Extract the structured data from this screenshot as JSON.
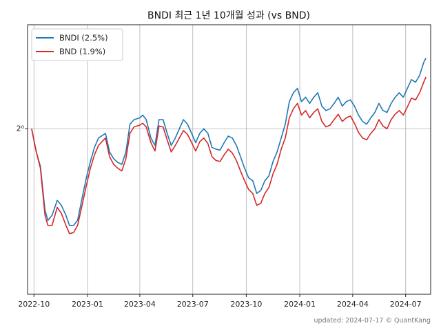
{
  "chart_data": {
    "type": "line",
    "title": "BNDI 최근 1년 10개월 성과 (vs BND)",
    "xlabel": "",
    "ylabel": "",
    "y_scale": "log2",
    "y_tick_label": "2⁰",
    "y_tick_value": 1.0,
    "ylim": [
      0.835,
      1.12
    ],
    "xlim": [
      "2022-09-20",
      "2024-08-13"
    ],
    "x_ticks": [
      {
        "date": "2022-10-01",
        "label": "2022-10"
      },
      {
        "date": "2023-01-01",
        "label": "2023-01"
      },
      {
        "date": "2023-04-01",
        "label": "2023-04"
      },
      {
        "date": "2023-07-01",
        "label": "2023-07"
      },
      {
        "date": "2023-10-01",
        "label": "2023-10"
      },
      {
        "date": "2024-01-01",
        "label": "2024-01"
      },
      {
        "date": "2024-04-01",
        "label": "2024-04"
      },
      {
        "date": "2024-07-01",
        "label": "2024-07"
      }
    ],
    "grid": true,
    "legend_position": "top-left",
    "series": [
      {
        "name": "BNDI (2.5%)",
        "color": "#1f77b4",
        "points": [
          [
            "2022-09-27",
            1.0
          ],
          [
            "2022-10-05",
            0.975
          ],
          [
            "2022-10-12",
            0.96
          ],
          [
            "2022-10-20",
            0.915
          ],
          [
            "2022-10-25",
            0.905
          ],
          [
            "2022-11-01",
            0.91
          ],
          [
            "2022-11-10",
            0.925
          ],
          [
            "2022-11-17",
            0.92
          ],
          [
            "2022-11-25",
            0.91
          ],
          [
            "2022-12-01",
            0.9
          ],
          [
            "2022-12-08",
            0.9
          ],
          [
            "2022-12-15",
            0.905
          ],
          [
            "2022-12-22",
            0.925
          ],
          [
            "2022-12-30",
            0.948
          ],
          [
            "2023-01-06",
            0.965
          ],
          [
            "2023-01-13",
            0.98
          ],
          [
            "2023-01-20",
            0.99
          ],
          [
            "2023-02-01",
            0.995
          ],
          [
            "2023-02-08",
            0.975
          ],
          [
            "2023-02-15",
            0.968
          ],
          [
            "2023-02-22",
            0.964
          ],
          [
            "2023-03-01",
            0.962
          ],
          [
            "2023-03-08",
            0.975
          ],
          [
            "2023-03-15",
            1.005
          ],
          [
            "2023-03-22",
            1.01
          ],
          [
            "2023-04-01",
            1.012
          ],
          [
            "2023-04-06",
            1.015
          ],
          [
            "2023-04-12",
            1.01
          ],
          [
            "2023-04-20",
            0.99
          ],
          [
            "2023-04-27",
            0.982
          ],
          [
            "2023-05-04",
            1.01
          ],
          [
            "2023-05-11",
            1.01
          ],
          [
            "2023-05-18",
            0.995
          ],
          [
            "2023-05-25",
            0.982
          ],
          [
            "2023-06-01",
            0.99
          ],
          [
            "2023-06-08",
            1.0
          ],
          [
            "2023-06-15",
            1.01
          ],
          [
            "2023-06-22",
            1.005
          ],
          [
            "2023-06-29",
            0.995
          ],
          [
            "2023-07-06",
            0.985
          ],
          [
            "2023-07-13",
            0.995
          ],
          [
            "2023-07-20",
            1.0
          ],
          [
            "2023-07-27",
            0.995
          ],
          [
            "2023-08-03",
            0.98
          ],
          [
            "2023-08-10",
            0.978
          ],
          [
            "2023-08-17",
            0.977
          ],
          [
            "2023-08-24",
            0.985
          ],
          [
            "2023-08-31",
            0.992
          ],
          [
            "2023-09-07",
            0.99
          ],
          [
            "2023-09-14",
            0.982
          ],
          [
            "2023-09-21",
            0.97
          ],
          [
            "2023-09-28",
            0.958
          ],
          [
            "2023-10-05",
            0.948
          ],
          [
            "2023-10-12",
            0.945
          ],
          [
            "2023-10-19",
            0.932
          ],
          [
            "2023-10-26",
            0.935
          ],
          [
            "2023-11-02",
            0.945
          ],
          [
            "2023-11-09",
            0.95
          ],
          [
            "2023-11-16",
            0.965
          ],
          [
            "2023-11-23",
            0.975
          ],
          [
            "2023-11-30",
            0.99
          ],
          [
            "2023-12-07",
            1.005
          ],
          [
            "2023-12-14",
            1.03
          ],
          [
            "2023-12-21",
            1.04
          ],
          [
            "2023-12-28",
            1.045
          ],
          [
            "2024-01-04",
            1.03
          ],
          [
            "2024-01-11",
            1.035
          ],
          [
            "2024-01-18",
            1.028
          ],
          [
            "2024-01-25",
            1.035
          ],
          [
            "2024-02-01",
            1.04
          ],
          [
            "2024-02-08",
            1.025
          ],
          [
            "2024-02-15",
            1.02
          ],
          [
            "2024-02-22",
            1.022
          ],
          [
            "2024-02-29",
            1.028
          ],
          [
            "2024-03-07",
            1.035
          ],
          [
            "2024-03-14",
            1.025
          ],
          [
            "2024-03-21",
            1.03
          ],
          [
            "2024-03-28",
            1.032
          ],
          [
            "2024-04-04",
            1.025
          ],
          [
            "2024-04-11",
            1.015
          ],
          [
            "2024-04-18",
            1.008
          ],
          [
            "2024-04-25",
            1.005
          ],
          [
            "2024-05-02",
            1.012
          ],
          [
            "2024-05-09",
            1.018
          ],
          [
            "2024-05-16",
            1.028
          ],
          [
            "2024-05-23",
            1.02
          ],
          [
            "2024-05-30",
            1.018
          ],
          [
            "2024-06-06",
            1.028
          ],
          [
            "2024-06-13",
            1.035
          ],
          [
            "2024-06-20",
            1.04
          ],
          [
            "2024-06-27",
            1.035
          ],
          [
            "2024-07-04",
            1.045
          ],
          [
            "2024-07-11",
            1.055
          ],
          [
            "2024-07-18",
            1.052
          ],
          [
            "2024-07-25",
            1.06
          ],
          [
            "2024-08-01",
            1.075
          ],
          [
            "2024-08-05",
            1.08
          ]
        ]
      },
      {
        "name": "BND (1.9%)",
        "color": "#d62728",
        "points": [
          [
            "2022-09-27",
            1.0
          ],
          [
            "2022-10-05",
            0.975
          ],
          [
            "2022-10-12",
            0.958
          ],
          [
            "2022-10-20",
            0.91
          ],
          [
            "2022-10-25",
            0.9
          ],
          [
            "2022-11-01",
            0.9
          ],
          [
            "2022-11-10",
            0.918
          ],
          [
            "2022-11-17",
            0.912
          ],
          [
            "2022-11-25",
            0.9
          ],
          [
            "2022-12-01",
            0.892
          ],
          [
            "2022-12-08",
            0.893
          ],
          [
            "2022-12-15",
            0.9
          ],
          [
            "2022-12-22",
            0.918
          ],
          [
            "2022-12-30",
            0.94
          ],
          [
            "2023-01-06",
            0.958
          ],
          [
            "2023-01-13",
            0.972
          ],
          [
            "2023-01-20",
            0.982
          ],
          [
            "2023-02-01",
            0.99
          ],
          [
            "2023-02-08",
            0.97
          ],
          [
            "2023-02-15",
            0.962
          ],
          [
            "2023-02-22",
            0.958
          ],
          [
            "2023-03-01",
            0.955
          ],
          [
            "2023-03-08",
            0.968
          ],
          [
            "2023-03-15",
            0.995
          ],
          [
            "2023-03-22",
            1.002
          ],
          [
            "2023-04-01",
            1.004
          ],
          [
            "2023-04-06",
            1.006
          ],
          [
            "2023-04-12",
            1.002
          ],
          [
            "2023-04-20",
            0.985
          ],
          [
            "2023-04-27",
            0.976
          ],
          [
            "2023-05-04",
            1.003
          ],
          [
            "2023-05-11",
            1.002
          ],
          [
            "2023-05-18",
            0.988
          ],
          [
            "2023-05-25",
            0.975
          ],
          [
            "2023-06-01",
            0.982
          ],
          [
            "2023-06-08",
            0.99
          ],
          [
            "2023-06-15",
            0.998
          ],
          [
            "2023-06-22",
            0.994
          ],
          [
            "2023-06-29",
            0.985
          ],
          [
            "2023-07-06",
            0.976
          ],
          [
            "2023-07-13",
            0.986
          ],
          [
            "2023-07-20",
            0.99
          ],
          [
            "2023-07-27",
            0.984
          ],
          [
            "2023-08-03",
            0.97
          ],
          [
            "2023-08-10",
            0.966
          ],
          [
            "2023-08-17",
            0.965
          ],
          [
            "2023-08-24",
            0.972
          ],
          [
            "2023-08-31",
            0.978
          ],
          [
            "2023-09-07",
            0.974
          ],
          [
            "2023-09-14",
            0.966
          ],
          [
            "2023-09-21",
            0.955
          ],
          [
            "2023-09-28",
            0.945
          ],
          [
            "2023-10-05",
            0.936
          ],
          [
            "2023-10-12",
            0.932
          ],
          [
            "2023-10-19",
            0.92
          ],
          [
            "2023-10-26",
            0.922
          ],
          [
            "2023-11-02",
            0.932
          ],
          [
            "2023-11-09",
            0.938
          ],
          [
            "2023-11-16",
            0.952
          ],
          [
            "2023-11-23",
            0.962
          ],
          [
            "2023-11-30",
            0.978
          ],
          [
            "2023-12-07",
            0.99
          ],
          [
            "2023-12-14",
            1.012
          ],
          [
            "2023-12-21",
            1.022
          ],
          [
            "2023-12-28",
            1.028
          ],
          [
            "2024-01-04",
            1.015
          ],
          [
            "2024-01-11",
            1.02
          ],
          [
            "2024-01-18",
            1.012
          ],
          [
            "2024-01-25",
            1.018
          ],
          [
            "2024-02-01",
            1.022
          ],
          [
            "2024-02-08",
            1.008
          ],
          [
            "2024-02-15",
            1.002
          ],
          [
            "2024-02-22",
            1.004
          ],
          [
            "2024-02-29",
            1.01
          ],
          [
            "2024-03-07",
            1.016
          ],
          [
            "2024-03-14",
            1.008
          ],
          [
            "2024-03-21",
            1.012
          ],
          [
            "2024-03-28",
            1.014
          ],
          [
            "2024-04-04",
            1.006
          ],
          [
            "2024-04-11",
            0.996
          ],
          [
            "2024-04-18",
            0.99
          ],
          [
            "2024-04-25",
            0.988
          ],
          [
            "2024-05-02",
            0.995
          ],
          [
            "2024-05-09",
            1.0
          ],
          [
            "2024-05-16",
            1.01
          ],
          [
            "2024-05-23",
            1.003
          ],
          [
            "2024-05-30",
            1.0
          ],
          [
            "2024-06-06",
            1.01
          ],
          [
            "2024-06-13",
            1.016
          ],
          [
            "2024-06-20",
            1.02
          ],
          [
            "2024-06-27",
            1.015
          ],
          [
            "2024-07-04",
            1.024
          ],
          [
            "2024-07-11",
            1.034
          ],
          [
            "2024-07-18",
            1.032
          ],
          [
            "2024-07-25",
            1.04
          ],
          [
            "2024-08-01",
            1.052
          ],
          [
            "2024-08-05",
            1.058
          ]
        ]
      }
    ]
  },
  "footer": {
    "text": "updated: 2024-07-17 © QuantKang"
  }
}
